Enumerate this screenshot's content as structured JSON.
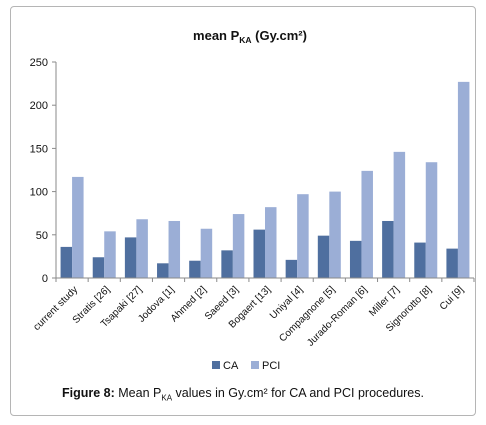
{
  "chart_data": {
    "type": "bar",
    "title_main": "mean P",
    "title_sub": "KA",
    "title_unit": " (Gy.cm²)",
    "categories": [
      "current study",
      "Stratis [26]",
      "Tsapaki [27]",
      "Jodova [1]",
      "Ahmed [2]",
      "Saeed [3]",
      "Bogaert [13]",
      "Uniyal [4]",
      "Compagnone [5]",
      "Jurado-Roman [6]",
      "Miller [7]",
      "Signorotto [8]",
      "Cui [9]"
    ],
    "series": [
      {
        "name": "CA",
        "color": "#4f6f9f",
        "values": [
          36,
          24,
          47,
          17,
          20,
          32,
          56,
          21,
          49,
          43,
          66,
          41,
          34
        ]
      },
      {
        "name": "PCI",
        "color": "#9baed6",
        "values": [
          117,
          54,
          68,
          66,
          57,
          74,
          82,
          97,
          100,
          124,
          146,
          134,
          227
        ]
      }
    ],
    "ylim": [
      0,
      250
    ],
    "yticks": [
      0,
      50,
      100,
      150,
      200,
      250
    ],
    "legend_position": "bottom",
    "grid": false
  },
  "caption": {
    "lead": "Figure 8:",
    "text_before": " Mean P",
    "text_sub": "KA",
    "text_after": " values in Gy.cm² for CA and PCI procedures."
  }
}
